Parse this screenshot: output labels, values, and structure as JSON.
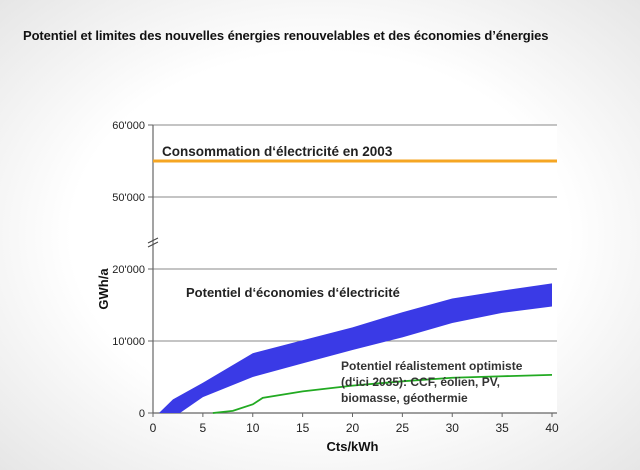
{
  "slide": {
    "title": "Potentiel et limites des nouvelles énergies renouvelables et des économies d’énergies"
  },
  "chart_data": {
    "type": "area",
    "title": "",
    "xlabel": "Cts/kWh",
    "ylabel": "GWh/a",
    "xlim": [
      0,
      40
    ],
    "ylim": [
      0,
      60000
    ],
    "y_axis_break": [
      20000,
      50000
    ],
    "x_ticks": [
      0,
      5,
      10,
      15,
      20,
      25,
      30,
      35,
      40
    ],
    "y_ticks": [
      {
        "value": 0,
        "label": "0"
      },
      {
        "value": 10000,
        "label": "10'000"
      },
      {
        "value": 20000,
        "label": "20'000"
      },
      {
        "value": 50000,
        "label": "50'000"
      },
      {
        "value": 60000,
        "label": "60'000"
      }
    ],
    "grid": "horizontal",
    "series": [
      {
        "name": "Consommation d‘électricité en 2003",
        "kind": "horizontal-line",
        "color": "#f5a623",
        "value": 55000
      },
      {
        "name": "Potentiel d‘économies d‘électricité",
        "kind": "band",
        "color": "#3a3ae6",
        "upper": {
          "x": [
            0.6,
            2,
            5,
            10,
            15,
            20,
            25,
            30,
            35,
            40
          ],
          "y": [
            0,
            1900,
            4200,
            8300,
            10100,
            11900,
            14000,
            15900,
            17000,
            18000
          ]
        },
        "lower": {
          "x": [
            2.7,
            5,
            10,
            15,
            20,
            25,
            30,
            35,
            40
          ],
          "y": [
            0,
            2200,
            5000,
            6900,
            8750,
            10500,
            12500,
            13900,
            14800
          ]
        }
      },
      {
        "name": "Potentiel réalistement optimiste (d‘ici 2035): CCF, éolien, PV, biomasse, géothermie",
        "label_lines": [
          "Potentiel réalistement optimiste",
          "(d‘ici 2035): CCF, éolien, PV,",
          "biomasse, géothermie"
        ],
        "kind": "line",
        "color": "#22aa22",
        "x": [
          6,
          8,
          10,
          11,
          15,
          20,
          25,
          30,
          35,
          40
        ],
        "y": [
          0,
          300,
          1200,
          2100,
          3000,
          3800,
          4400,
          4900,
          5100,
          5300
        ]
      }
    ]
  }
}
